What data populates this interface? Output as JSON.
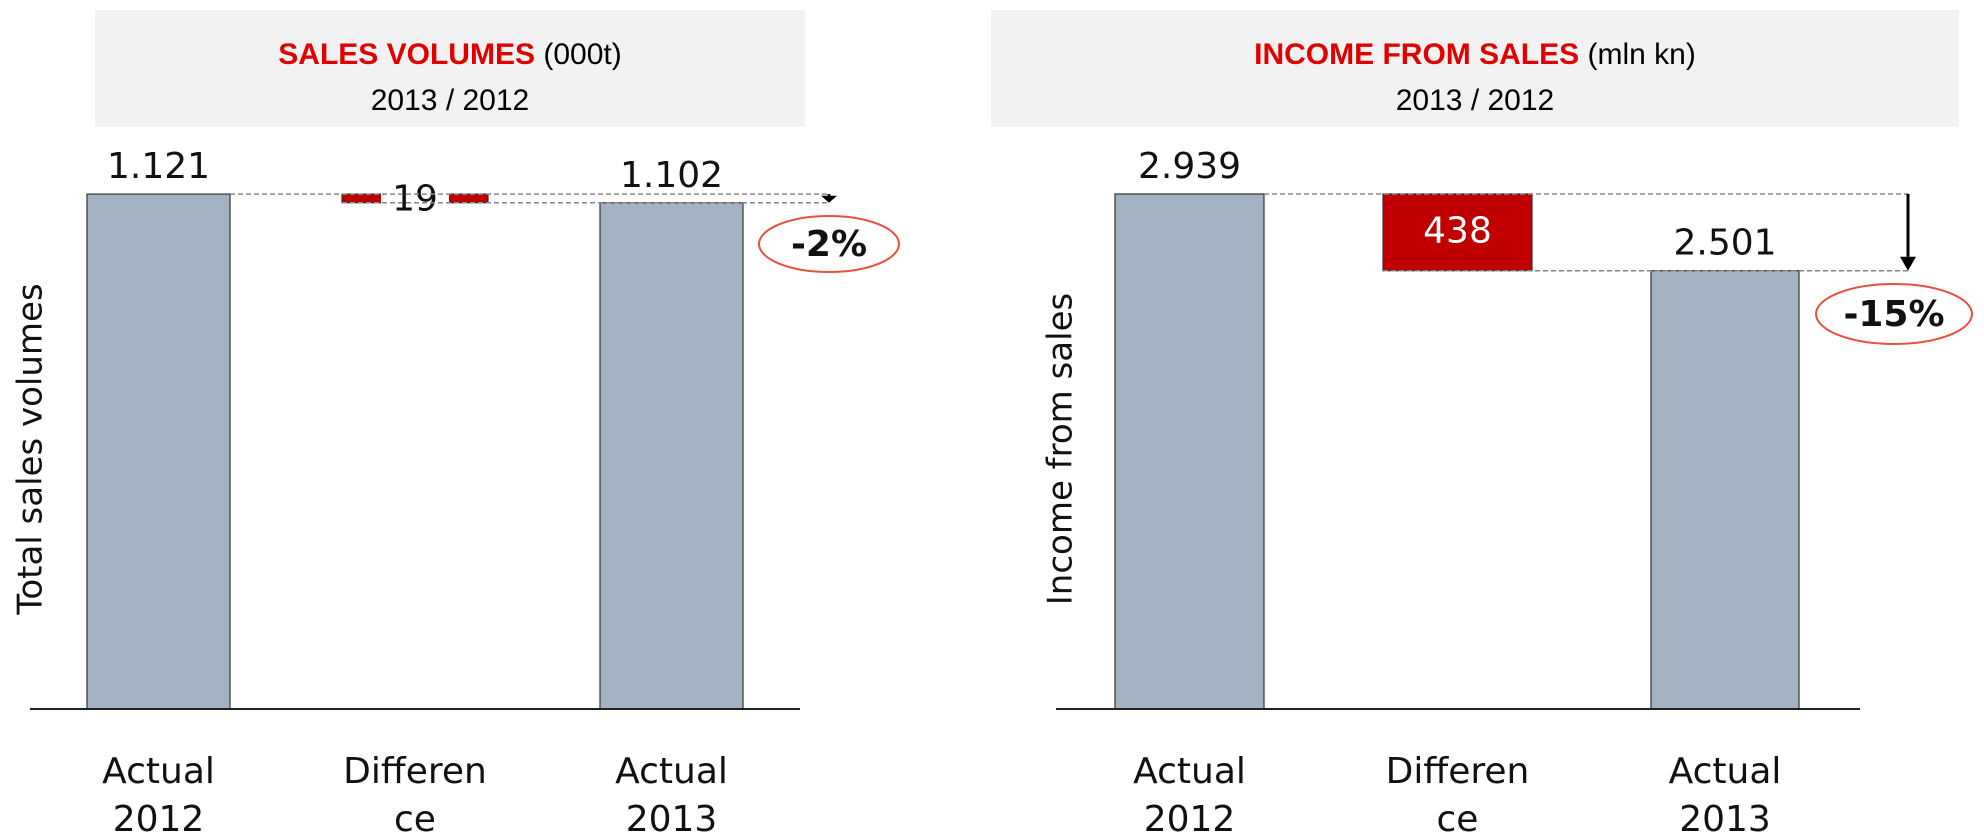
{
  "chart_data": [
    {
      "type": "waterfall",
      "title": "SALES VOLUMES",
      "title_unit": "(000t)",
      "subtitle": "2013 / 2012",
      "y_label": "Total sales volumes",
      "categories": [
        "Actual 2012",
        "Difference",
        "Actual 2013"
      ],
      "measures": [
        "absolute",
        "decrease",
        "absolute"
      ],
      "values": [
        1121,
        19,
        1102
      ],
      "value_labels": [
        "1.121",
        "19",
        "1.102"
      ],
      "colors": [
        "#a3b3c2",
        "#c00000",
        "#a3b3c2"
      ],
      "ylim": [
        0,
        1267
      ],
      "annotation": "-2%"
    },
    {
      "type": "waterfall",
      "title": "INCOME FROM SALES",
      "title_unit": "(mln kn)",
      "subtitle": "2013 / 2012",
      "y_label": "Income from sales",
      "categories": [
        "Actual 2012",
        "Difference",
        "Actual 2013"
      ],
      "measures": [
        "absolute",
        "decrease",
        "absolute"
      ],
      "values": [
        2939,
        438,
        2501
      ],
      "value_labels": [
        "2.939",
        "438",
        "2.501"
      ],
      "colors": [
        "#a3b3c2",
        "#c00000",
        "#a3b3c2"
      ],
      "ylim": [
        0,
        3321
      ],
      "annotation": "-15%"
    }
  ]
}
